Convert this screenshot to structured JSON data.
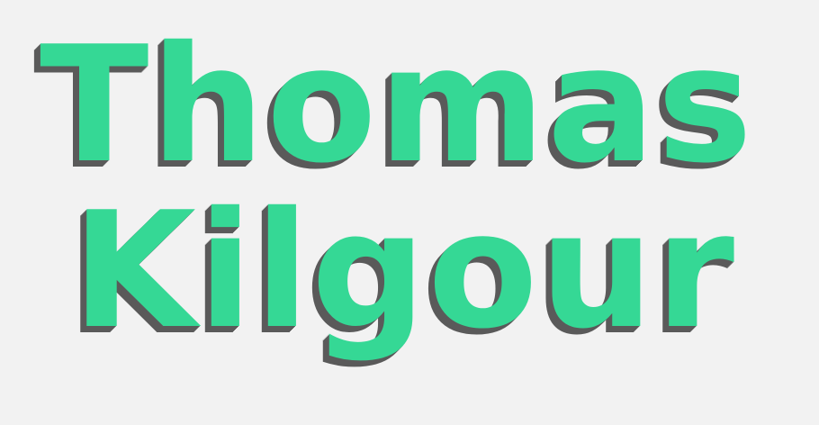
{
  "name": {
    "first": "Thomas",
    "last": "Kilgour"
  },
  "colors": {
    "background": "#f2f2f2",
    "text": "#35d895",
    "shadow": "#5a5a5a"
  }
}
